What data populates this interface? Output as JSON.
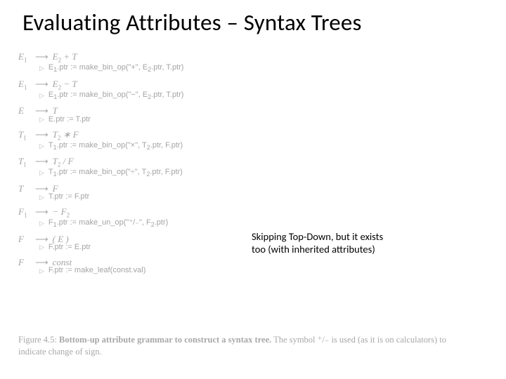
{
  "title": "Evaluating Attributes – Syntax Trees",
  "rules": [
    {
      "lhs": "E₁",
      "rhs": "E₂  +  T",
      "action": "E₁.ptr := make_bin_op(\"+\", E₂.ptr, T.ptr)"
    },
    {
      "lhs": "E₁",
      "rhs": "E₂  −  T",
      "action": "E₁.ptr := make_bin_op(\"−\", E₂.ptr, T.ptr)"
    },
    {
      "lhs": "E",
      "rhs": "T",
      "action": "E.ptr := T.ptr"
    },
    {
      "lhs": "T₁",
      "rhs": "T₂  ∗  F",
      "action": "T₁.ptr := make_bin_op(\"×\", T₂.ptr, F.ptr)"
    },
    {
      "lhs": "T₁",
      "rhs": "T₂  /  F",
      "action": "T₁.ptr := make_bin_op(\"÷\", T₂.ptr, F.ptr)"
    },
    {
      "lhs": "T",
      "rhs": "F",
      "action": "T.ptr := F.ptr"
    },
    {
      "lhs": "F₁",
      "rhs": "−  F₂",
      "action": "F₁.ptr := make_un_op(\"⁺/₋\", F₂.ptr)"
    },
    {
      "lhs": "F",
      "rhs": "(  E  )",
      "action": "F.ptr := E.ptr"
    },
    {
      "lhs": "F",
      "rhs": "const",
      "action": "F.ptr := make_leaf(const.val)"
    }
  ],
  "arrow": "⟶",
  "triangle": "▷",
  "note": "Skipping Top-Down, but it exists too (with inherited attributes)",
  "caption_label": "Figure 4.5:",
  "caption_bold": "Bottom-up attribute grammar to construct a syntax tree.",
  "caption_rest1": " The symbol ",
  "caption_sym": "⁺/₋",
  "caption_rest2": " is used (as it is on calculators) to indicate change of sign."
}
